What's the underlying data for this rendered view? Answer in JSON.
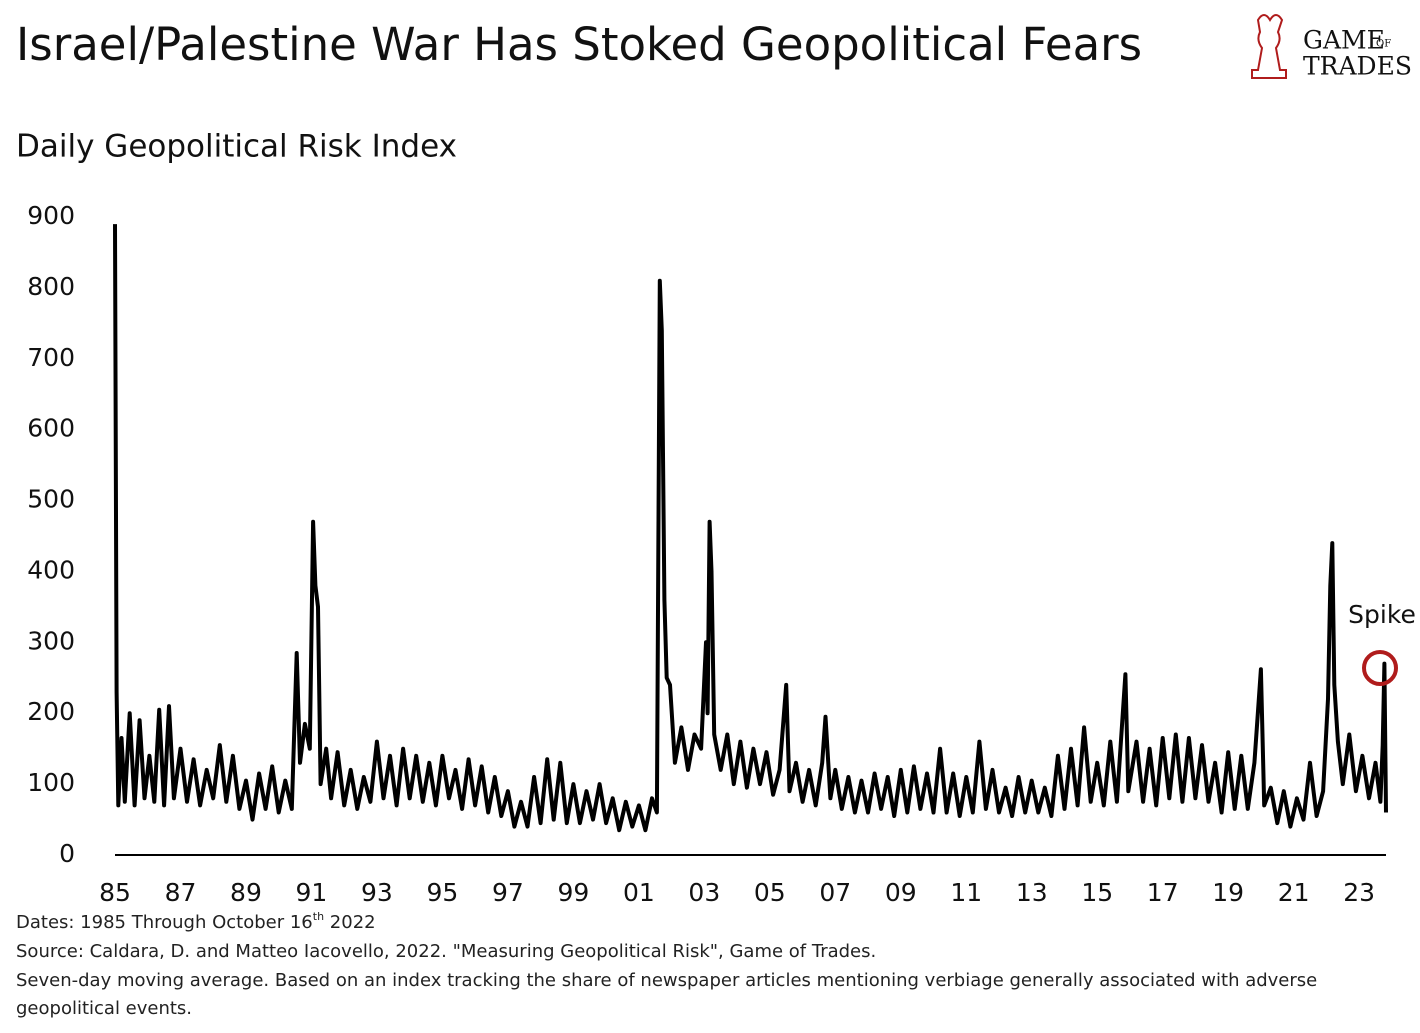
{
  "chart_data": {
    "type": "line",
    "title": "Israel/Palestine War Has Stoked Geopolitical Fears",
    "subtitle": "Daily Geopolitical Risk Index",
    "logo": [
      "GAME",
      "OF",
      "TRADES"
    ],
    "annotation": "Spike",
    "notes": {
      "dates": [
        "Dates: 1985 Through October 16",
        "th",
        " 2022"
      ],
      "source": "Source: Caldara, D. and Matteo Iacovello, 2022. \"Measuring Geopolitical Risk\", Game of Trades.",
      "method": [
        "Seven-day moving average. Based on an index tracking the share of newspaper articles mentioning verbiage generally associated with adverse",
        "geopolitical events."
      ]
    },
    "color": "#000000",
    "annotation_color": "#b01c1c",
    "xlim": [
      1985,
      2023.82
    ],
    "xticks": [
      {
        "value": 1985,
        "label": "85"
      },
      {
        "value": 1987,
        "label": "87"
      },
      {
        "value": 1989,
        "label": "89"
      },
      {
        "value": 1991,
        "label": "91"
      },
      {
        "value": 1993,
        "label": "93"
      },
      {
        "value": 1995,
        "label": "95"
      },
      {
        "value": 1997,
        "label": "97"
      },
      {
        "value": 1999,
        "label": "99"
      },
      {
        "value": 2001,
        "label": "01"
      },
      {
        "value": 2003,
        "label": "03"
      },
      {
        "value": 2005,
        "label": "05"
      },
      {
        "value": 2007,
        "label": "07"
      },
      {
        "value": 2009,
        "label": "09"
      },
      {
        "value": 2011,
        "label": "11"
      },
      {
        "value": 2013,
        "label": "13"
      },
      {
        "value": 2015,
        "label": "15"
      },
      {
        "value": 2017,
        "label": "17"
      },
      {
        "value": 2019,
        "label": "19"
      },
      {
        "value": 2021,
        "label": "21"
      },
      {
        "value": 2023,
        "label": "23"
      }
    ],
    "ylim": [
      0,
      900
    ],
    "yticks": [
      0,
      100,
      200,
      300,
      400,
      500,
      600,
      700,
      800,
      900
    ],
    "grid": false,
    "x": [
      1985.0,
      1985.05,
      1985.1,
      1985.2,
      1985.3,
      1985.45,
      1985.6,
      1985.75,
      1985.9,
      1986.05,
      1986.2,
      1986.35,
      1986.5,
      1986.65,
      1986.8,
      1987.0,
      1987.2,
      1987.4,
      1987.6,
      1987.8,
      1988.0,
      1988.2,
      1988.4,
      1988.6,
      1988.8,
      1989.0,
      1989.2,
      1989.4,
      1989.6,
      1989.8,
      1990.0,
      1990.2,
      1990.4,
      1990.55,
      1990.65,
      1990.8,
      1990.95,
      1991.05,
      1991.12,
      1991.2,
      1991.28,
      1991.45,
      1991.6,
      1991.8,
      1992.0,
      1992.2,
      1992.4,
      1992.6,
      1992.8,
      1993.0,
      1993.2,
      1993.4,
      1993.6,
      1993.8,
      1994.0,
      1994.2,
      1994.4,
      1994.6,
      1994.8,
      1995.0,
      1995.2,
      1995.4,
      1995.6,
      1995.8,
      1996.0,
      1996.2,
      1996.4,
      1996.6,
      1996.8,
      1997.0,
      1997.2,
      1997.4,
      1997.6,
      1997.8,
      1998.0,
      1998.2,
      1998.4,
      1998.6,
      1998.8,
      1999.0,
      1999.2,
      1999.4,
      1999.6,
      1999.8,
      2000.0,
      2000.2,
      2000.4,
      2000.6,
      2000.8,
      2001.0,
      2001.2,
      2001.4,
      2001.55,
      2001.64,
      2001.7,
      2001.78,
      2001.85,
      2001.95,
      2002.1,
      2002.3,
      2002.5,
      2002.7,
      2002.9,
      2003.05,
      2003.1,
      2003.16,
      2003.22,
      2003.3,
      2003.5,
      2003.7,
      2003.9,
      2004.1,
      2004.3,
      2004.5,
      2004.7,
      2004.9,
      2005.1,
      2005.3,
      2005.5,
      2005.6,
      2005.8,
      2006.0,
      2006.2,
      2006.4,
      2006.6,
      2006.7,
      2006.85,
      2007.0,
      2007.2,
      2007.4,
      2007.6,
      2007.8,
      2008.0,
      2008.2,
      2008.4,
      2008.6,
      2008.8,
      2009.0,
      2009.2,
      2009.4,
      2009.6,
      2009.8,
      2010.0,
      2010.2,
      2010.4,
      2010.6,
      2010.8,
      2011.0,
      2011.2,
      2011.4,
      2011.6,
      2011.8,
      2012.0,
      2012.2,
      2012.4,
      2012.6,
      2012.8,
      2013.0,
      2013.2,
      2013.4,
      2013.6,
      2013.8,
      2014.0,
      2014.2,
      2014.4,
      2014.6,
      2014.8,
      2015.0,
      2015.2,
      2015.4,
      2015.6,
      2015.86,
      2015.95,
      2016.2,
      2016.4,
      2016.6,
      2016.8,
      2017.0,
      2017.2,
      2017.4,
      2017.6,
      2017.8,
      2018.0,
      2018.2,
      2018.4,
      2018.6,
      2018.8,
      2019.0,
      2019.2,
      2019.4,
      2019.6,
      2019.8,
      2020.0,
      2020.1,
      2020.3,
      2020.5,
      2020.7,
      2020.9,
      2021.1,
      2021.3,
      2021.5,
      2021.7,
      2021.9,
      2022.05,
      2022.12,
      2022.18,
      2022.24,
      2022.35,
      2022.5,
      2022.7,
      2022.9,
      2023.1,
      2023.3,
      2023.5,
      2023.65,
      2023.72,
      2023.77,
      2023.82
    ],
    "values": [
      890,
      230,
      70,
      165,
      75,
      200,
      70,
      190,
      80,
      140,
      75,
      205,
      70,
      210,
      80,
      150,
      75,
      135,
      70,
      120,
      80,
      155,
      75,
      140,
      65,
      105,
      50,
      115,
      65,
      125,
      60,
      105,
      65,
      285,
      130,
      185,
      150,
      470,
      380,
      350,
      100,
      150,
      80,
      145,
      70,
      120,
      65,
      110,
      75,
      160,
      80,
      140,
      70,
      150,
      80,
      140,
      75,
      130,
      70,
      140,
      80,
      120,
      65,
      135,
      70,
      125,
      60,
      110,
      55,
      90,
      40,
      75,
      40,
      110,
      45,
      135,
      50,
      130,
      45,
      100,
      45,
      90,
      50,
      100,
      45,
      80,
      35,
      75,
      40,
      70,
      35,
      80,
      60,
      810,
      740,
      360,
      250,
      240,
      130,
      180,
      120,
      170,
      150,
      300,
      200,
      470,
      400,
      170,
      120,
      170,
      100,
      160,
      95,
      150,
      100,
      145,
      85,
      120,
      240,
      90,
      130,
      75,
      120,
      70,
      130,
      195,
      80,
      120,
      65,
      110,
      60,
      105,
      60,
      115,
      65,
      110,
      55,
      120,
      60,
      125,
      65,
      115,
      60,
      150,
      60,
      115,
      55,
      110,
      60,
      160,
      65,
      120,
      60,
      95,
      55,
      110,
      60,
      105,
      60,
      95,
      55,
      140,
      65,
      150,
      70,
      180,
      75,
      130,
      70,
      160,
      75,
      255,
      90,
      160,
      75,
      150,
      70,
      165,
      80,
      170,
      75,
      165,
      80,
      155,
      75,
      130,
      60,
      145,
      65,
      140,
      65,
      130,
      262,
      70,
      95,
      45,
      90,
      40,
      80,
      50,
      130,
      55,
      90,
      220,
      380,
      440,
      240,
      160,
      100,
      170,
      90,
      140,
      80,
      130,
      75,
      155,
      270,
      60
    ]
  }
}
